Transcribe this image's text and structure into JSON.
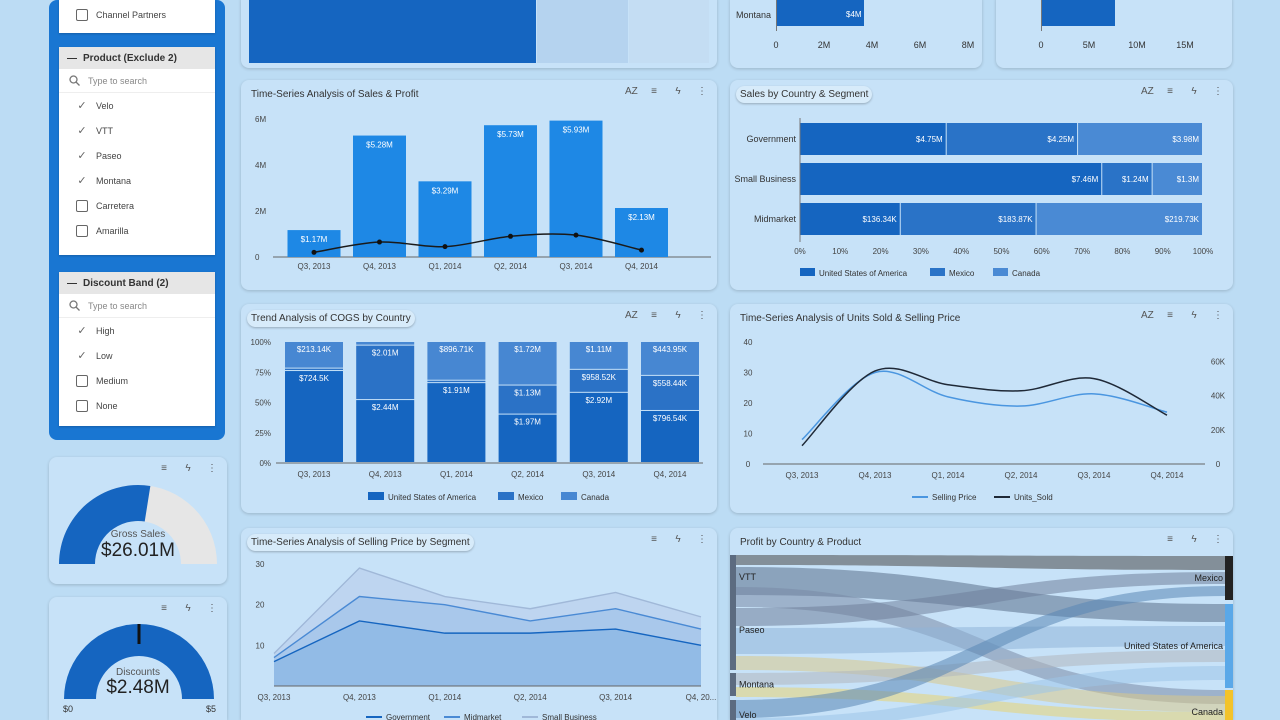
{
  "filters": {
    "partial_item": "Channel Partners",
    "product": {
      "title": "Product (Exclude 2)",
      "search_placeholder": "Type to search",
      "items": [
        {
          "label": "Velo",
          "checked": true
        },
        {
          "label": "VTT",
          "checked": true
        },
        {
          "label": "Paseo",
          "checked": true
        },
        {
          "label": "Montana",
          "checked": true
        },
        {
          "label": "Carretera",
          "checked": false
        },
        {
          "label": "Amarilla",
          "checked": false
        }
      ]
    },
    "discount": {
      "title": "Discount Band (2)",
      "search_placeholder": "Type to search",
      "items": [
        {
          "label": "High",
          "checked": true
        },
        {
          "label": "Low",
          "checked": true
        },
        {
          "label": "Medium",
          "checked": false
        },
        {
          "label": "None",
          "checked": false
        }
      ]
    }
  },
  "gauges": {
    "gross_sales": {
      "label": "Gross Sales",
      "value": "$26.01M",
      "fill_fraction": 0.55
    },
    "discounts": {
      "label": "Discounts",
      "value": "$2.48M",
      "fill_fraction": 1.0,
      "min": "$0",
      "max": "$5"
    }
  },
  "top_charts": {
    "left_axis": {
      "category": "Montana",
      "bar_label": "$4M",
      "ticks": [
        "0",
        "2M",
        "4M",
        "6M",
        "8M"
      ]
    },
    "right_axis": {
      "ticks": [
        "0",
        "5M",
        "10M",
        "15M"
      ]
    }
  },
  "icons": {
    "sort": "AZ",
    "filter": "filter-icon",
    "bolt": "bolt-icon",
    "more": "more-vertical-icon"
  },
  "chart_data": [
    {
      "id": "sales_profit",
      "type": "bar",
      "title": "Time-Series Analysis of Sales & Profit",
      "categories": [
        "Q3, 2013",
        "Q4, 2013",
        "Q1, 2014",
        "Q2, 2014",
        "Q3, 2014",
        "Q4, 2014"
      ],
      "series": [
        {
          "values": [
            1.17,
            5.28,
            3.29,
            5.73,
            5.93,
            2.13
          ],
          "labels": [
            "$1.17M",
            "$5.28M",
            "$3.29M",
            "$5.73M",
            "$5.93M",
            "$2.13M"
          ]
        },
        {
          "type": "line",
          "values": [
            0.2,
            0.65,
            0.45,
            0.9,
            0.95,
            0.3
          ]
        }
      ],
      "yticks": [
        "0",
        "2M",
        "4M",
        "6M"
      ],
      "ylim": [
        0,
        6
      ]
    },
    {
      "id": "country_segment",
      "type": "bar",
      "title": "Sales by Country & Segment",
      "categories": [
        "Government",
        "Small Business",
        "Midmarket"
      ],
      "series": [
        {
          "name": "United States of America",
          "values": [
            36.4,
            75,
            25
          ],
          "labels": [
            "$4.75M",
            "$7.46M",
            "$136.34K"
          ]
        },
        {
          "name": "Mexico",
          "values": [
            32.6,
            12.5,
            33.7
          ],
          "labels": [
            "$4.25M",
            "$1.24M",
            "$183.87K"
          ]
        },
        {
          "name": "Canada",
          "values": [
            31,
            12.5,
            41.3
          ],
          "labels": [
            "$3.98M",
            "$1.3M",
            "$219.73K"
          ]
        }
      ],
      "xticks": [
        "0%",
        "10%",
        "20%",
        "30%",
        "40%",
        "50%",
        "60%",
        "70%",
        "80%",
        "90%",
        "100%"
      ]
    },
    {
      "id": "cogs_country",
      "type": "bar",
      "title": "Trend Analysis of COGS by Country",
      "categories": [
        "Q3, 2013",
        "Q4, 2013",
        "Q1, 2014",
        "Q2, 2014",
        "Q3, 2014",
        "Q4, 2014"
      ],
      "series": [
        {
          "name": "United States of America",
          "values": [
            76,
            52,
            66,
            40,
            58,
            43
          ],
          "labels": [
            "$724.5K",
            "$2.44M",
            "$1.91M",
            "$1.97M",
            "$2.92M",
            "$796.54K"
          ]
        },
        {
          "name": "Mexico",
          "values": [
            2,
            45,
            2,
            24,
            19,
            29
          ],
          "labels": [
            "",
            "$2.01M",
            "",
            "$1.13M",
            "$958.52K",
            "$558.44K"
          ]
        },
        {
          "name": "Canada",
          "values": [
            22,
            3,
            32,
            36,
            23,
            28
          ],
          "labels": [
            "$213.14K",
            "",
            "$896.71K",
            "$1.72M",
            "$1.11M",
            "$443.95K"
          ]
        }
      ],
      "yticks": [
        "0%",
        "25%",
        "50%",
        "75%",
        "100%"
      ]
    },
    {
      "id": "units_price",
      "type": "line",
      "title": "Time-Series Analysis of Units Sold & Selling Price",
      "categories": [
        "Q3, 2013",
        "Q4, 2013",
        "Q1, 2014",
        "Q2, 2014",
        "Q3, 2014",
        "Q4, 2014"
      ],
      "series": [
        {
          "name": "Selling Price",
          "values": [
            8,
            30,
            22,
            19,
            23,
            17
          ]
        },
        {
          "name": "Units_Sold",
          "values": [
            12000,
            61000,
            52000,
            48000,
            56000,
            32000
          ]
        }
      ],
      "yticks_left": [
        "0",
        "10",
        "20",
        "30",
        "40"
      ],
      "yticks_right": [
        "0",
        "20K",
        "40K",
        "60K"
      ],
      "ylim": [
        0,
        40
      ],
      "y2lim": [
        0,
        80000
      ]
    },
    {
      "id": "price_segment",
      "type": "area",
      "title": "Time-Series Analysis of Selling Price by Segment",
      "categories": [
        "Q3, 2013",
        "Q4, 2013",
        "Q1, 2014",
        "Q2, 2014",
        "Q3, 2014",
        "Q4, 20..."
      ],
      "series": [
        {
          "name": "Government",
          "values": [
            6,
            16,
            13,
            13,
            14,
            10
          ]
        },
        {
          "name": "Midmarket",
          "values": [
            7,
            22,
            20,
            16,
            19,
            14
          ]
        },
        {
          "name": "Small Business",
          "values": [
            8,
            29,
            22,
            19,
            23,
            17
          ]
        }
      ],
      "yticks": [
        "10",
        "20",
        "30"
      ],
      "ylim": [
        0,
        30
      ]
    },
    {
      "id": "profit_country_product",
      "type": "sankey",
      "title": "Profit by Country & Product",
      "sources": [
        "VTT",
        "Paseo",
        "Montana",
        "Velo"
      ],
      "targets": [
        "Mexico",
        "United States of America",
        "Canada"
      ]
    }
  ]
}
